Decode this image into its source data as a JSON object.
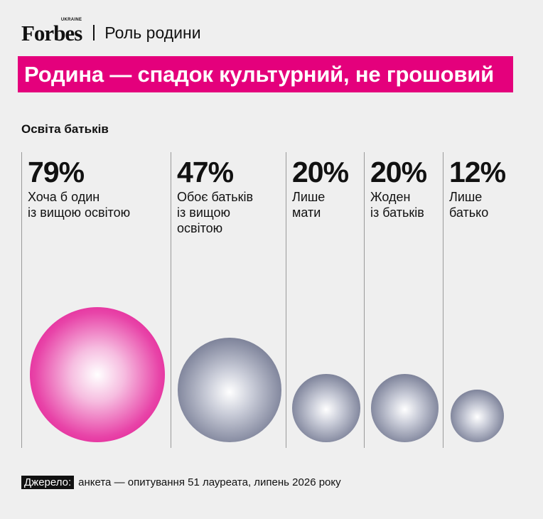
{
  "header": {
    "brand": "Forbes",
    "brand_sub": "UKRAINE",
    "section": "Роль родини"
  },
  "title": "Родина — спадок культурний, не грошовий",
  "subtitle": "Освіта батьків",
  "colors": {
    "accent": "#e4007c",
    "highlight_bubble": "#e4007c",
    "other_bubbles": "#6b7088"
  },
  "chart_data": {
    "type": "bubble",
    "title": "Освіта батьків",
    "unit": "%",
    "categories": [
      {
        "value": 79,
        "value_label": "79%",
        "label_lines": [
          "Хоча б один",
          "із вищою освітою"
        ],
        "highlight": true
      },
      {
        "value": 47,
        "value_label": "47%",
        "label_lines": [
          "Обоє батьків",
          "із вищою",
          "освітою"
        ],
        "highlight": false
      },
      {
        "value": 20,
        "value_label": "20%",
        "label_lines": [
          "Лише",
          "мати"
        ],
        "highlight": false
      },
      {
        "value": 20,
        "value_label": "20%",
        "label_lines": [
          "Жоден",
          "із батьків"
        ],
        "highlight": false
      },
      {
        "value": 12,
        "value_label": "12%",
        "label_lines": [
          "Лише",
          "батько"
        ],
        "highlight": false
      }
    ]
  },
  "source": {
    "label": "Джерело:",
    "text": "анкета — опитування 51 лауреата, липень 2026 року"
  }
}
